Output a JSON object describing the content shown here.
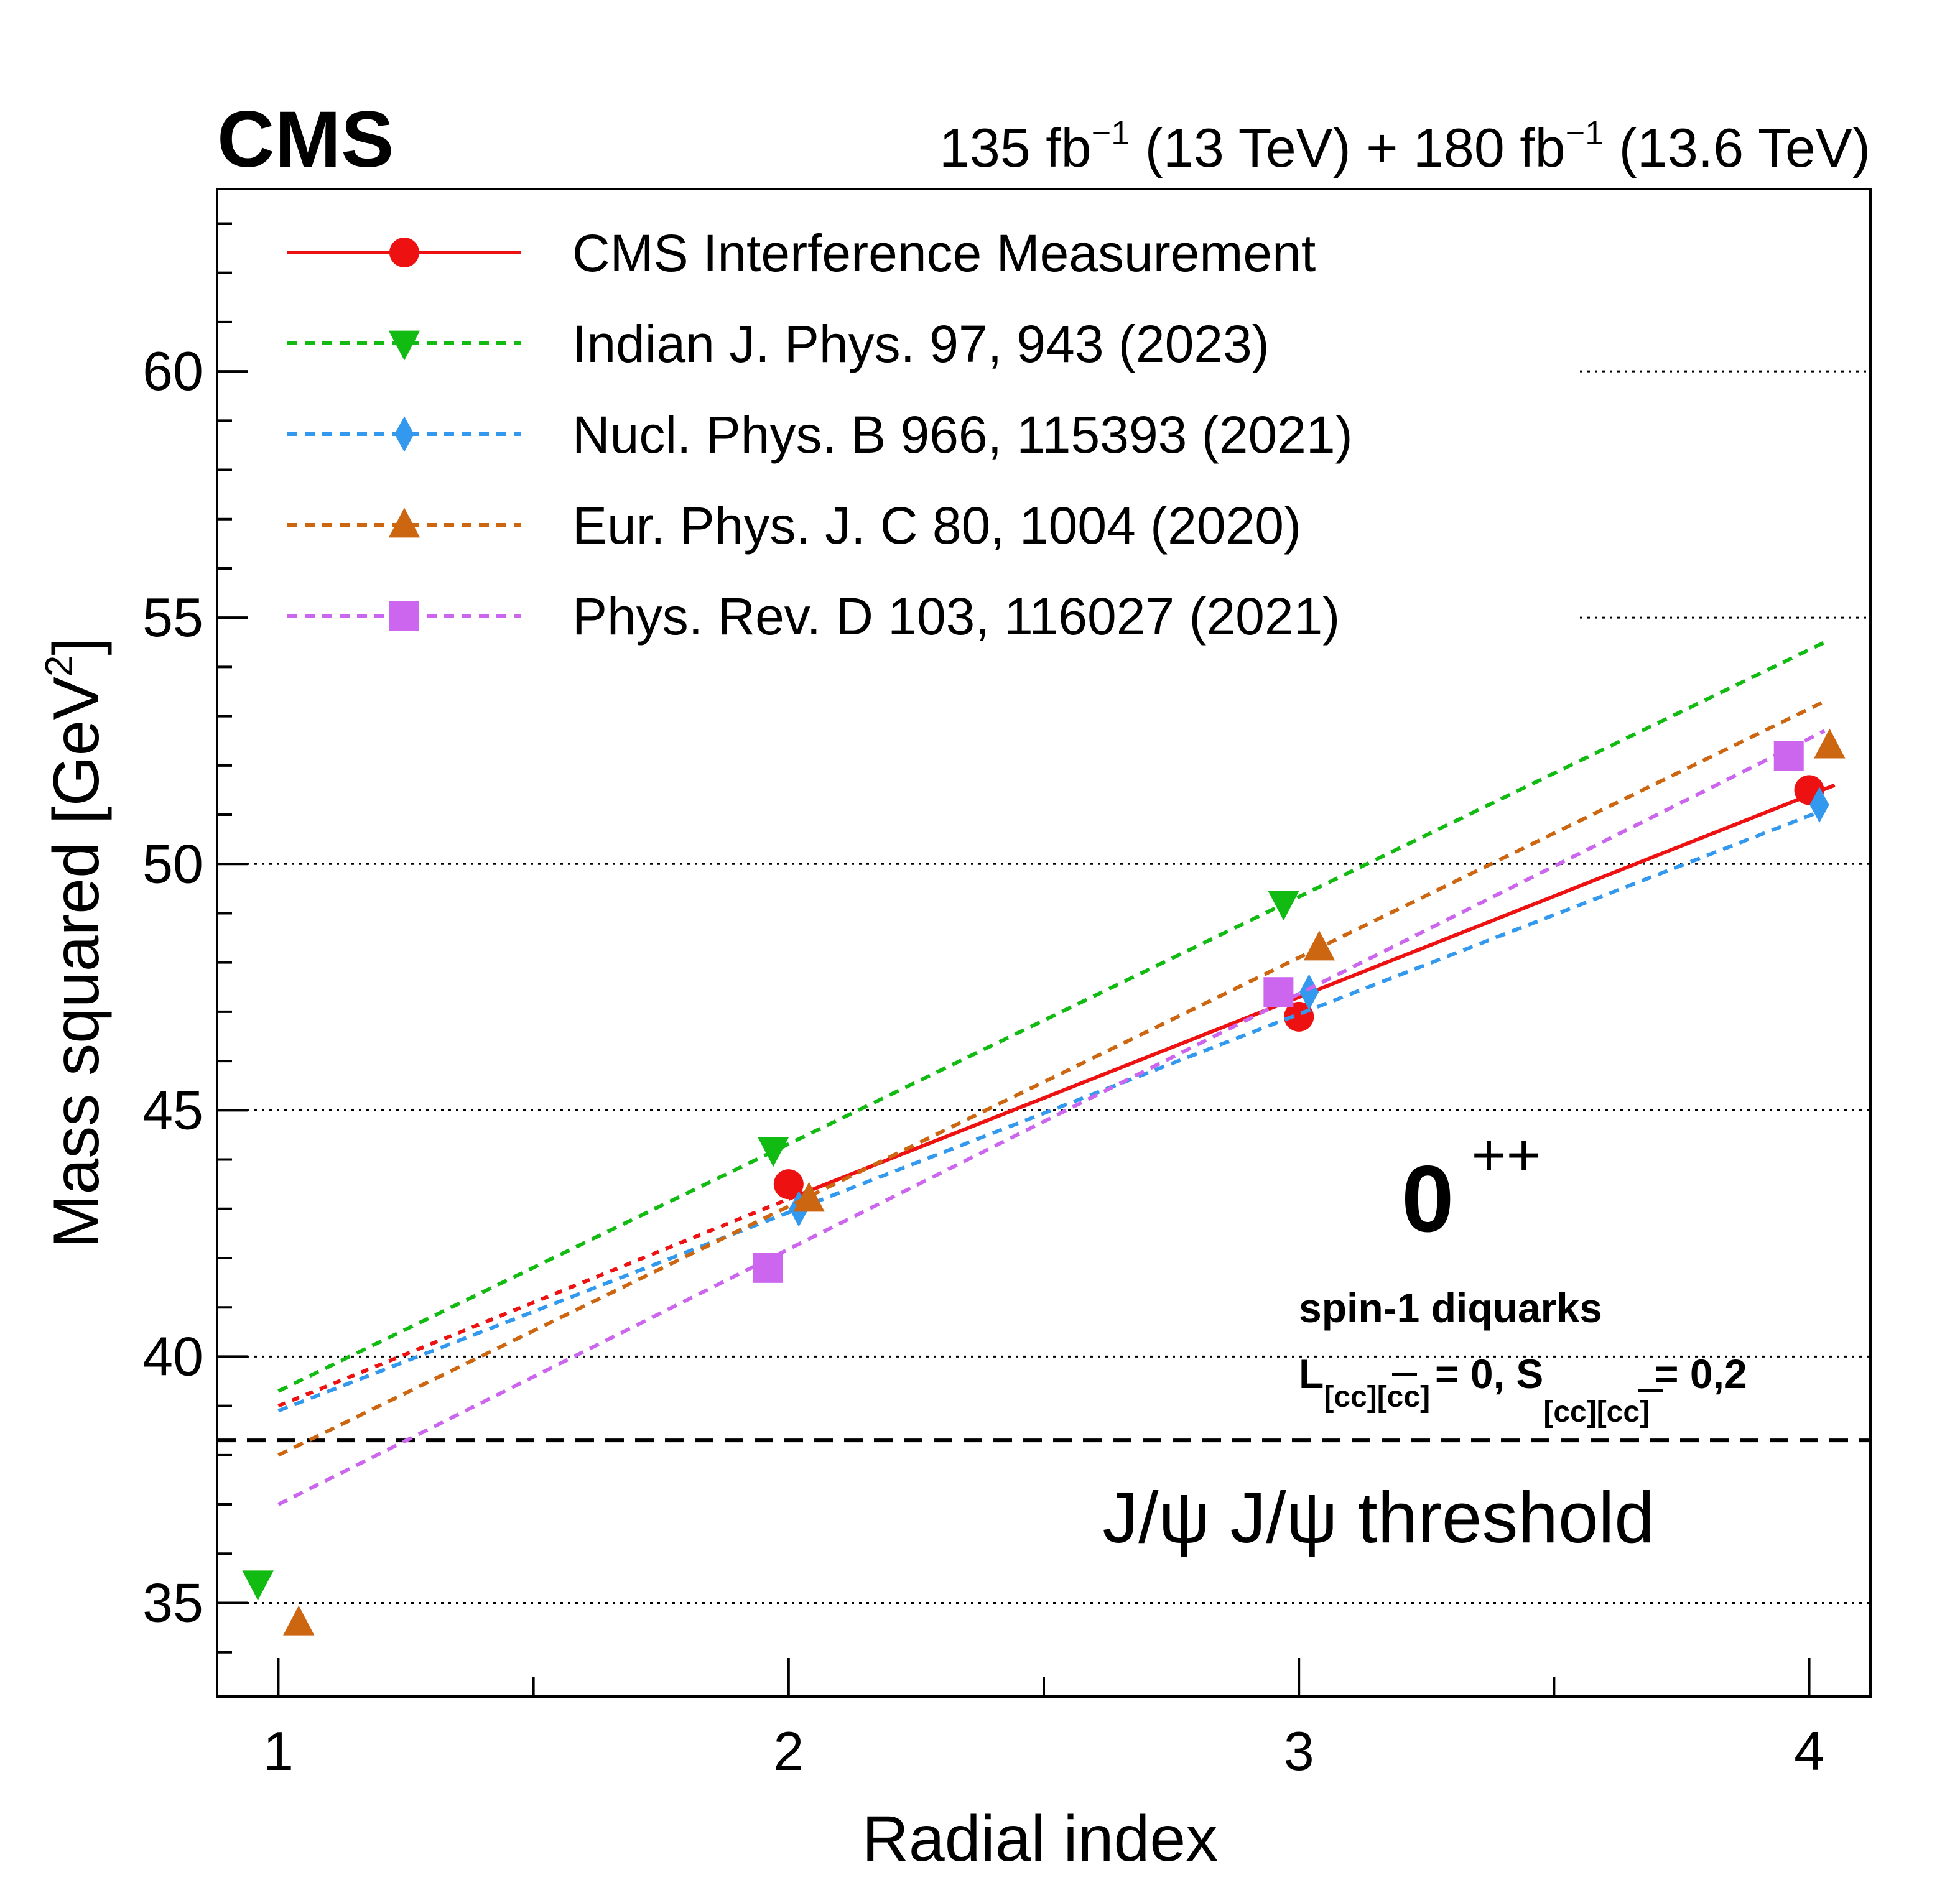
{
  "header": {
    "experiment": "CMS",
    "lumi_a": "135 fb",
    "lumi_sup": "−1",
    "energy_a": " (13 TeV) + 180 fb",
    "energy_b": " (13.6 TeV)"
  },
  "annotations": {
    "jpc_base": "0",
    "jpc_sup": "++",
    "line1": "spin-1 diquarks",
    "L_symbol": "L",
    "L_sub": "[cc][cc]",
    "L_value": "= 0, S",
    "S_sub": "[cc][cc]",
    "S_value": "= 0,2",
    "threshold_label": "J/ψ J/ψ threshold"
  },
  "chart_data": {
    "type": "line",
    "xlabel": "Radial index",
    "ylabel": "Mass squared [GeV",
    "ylabel_sup": "2",
    "ylabel_close": "]",
    "xlim": [
      0.88,
      4.12
    ],
    "ylim": [
      33.1,
      63.7
    ],
    "x_ticks": [
      1,
      2,
      3,
      4
    ],
    "x_tick_labels": [
      "1",
      "2",
      "3",
      "4"
    ],
    "y_ticks": [
      35,
      40,
      45,
      50,
      55,
      60
    ],
    "y_tick_labels": [
      "35",
      "40",
      "45",
      "50",
      "55",
      "60"
    ],
    "grid": "horizontal dotted",
    "threshold": 38.3,
    "legend_position": "top-left",
    "series": [
      {
        "name": "CMS Interference Measurement",
        "color": "#ee1111",
        "marker": "circle",
        "line_style": "solid",
        "points": [
          [
            2,
            43.5
          ],
          [
            3,
            46.9
          ],
          [
            4,
            51.5
          ]
        ],
        "fit": [
          [
            2,
            43.2
          ],
          [
            4.05,
            51.6
          ]
        ],
        "extrapolation": [
          [
            1,
            39.0
          ],
          [
            2,
            43.2
          ]
        ]
      },
      {
        "name": "Indian J. Phys. 97, 943 (2023)",
        "color": "#11bb11",
        "marker": "triangle-down",
        "line_style": "dashed",
        "points": [
          [
            0.96,
            35.4
          ],
          [
            1.97,
            44.2
          ],
          [
            2.97,
            49.2
          ]
        ],
        "fit": [
          [
            1,
            39.3
          ],
          [
            4.03,
            54.5
          ]
        ]
      },
      {
        "name": "Nucl. Phys. B 966, 115393 (2021)",
        "color": "#3399ee",
        "marker": "diamond",
        "line_style": "dashed",
        "points": [
          [
            2.02,
            43.0
          ],
          [
            3.02,
            47.4
          ],
          [
            4.02,
            51.2
          ]
        ],
        "fit": [
          [
            1,
            38.9
          ],
          [
            4.03,
            51.1
          ]
        ]
      },
      {
        "name": "Eur. Phys. J. C 80, 1004 (2020)",
        "color": "#cc6611",
        "marker": "triangle-up",
        "line_style": "dashed",
        "points": [
          [
            1.04,
            34.6
          ],
          [
            2.04,
            43.2
          ],
          [
            3.04,
            48.3
          ],
          [
            4.04,
            52.4
          ]
        ],
        "fit": [
          [
            1,
            38.0
          ],
          [
            4.03,
            53.3
          ]
        ]
      },
      {
        "name": "Phys. Rev. D 103, 116027 (2021)",
        "color": "#cc66ee",
        "marker": "square",
        "line_style": "dashed",
        "points": [
          [
            1.96,
            41.8
          ],
          [
            2.96,
            47.4
          ],
          [
            3.96,
            52.2
          ]
        ],
        "fit": [
          [
            1,
            37.0
          ],
          [
            4.03,
            52.7
          ]
        ]
      }
    ]
  }
}
